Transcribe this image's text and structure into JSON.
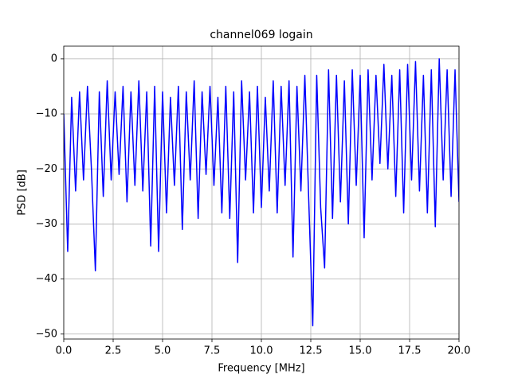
{
  "chart_data": {
    "type": "line",
    "title": "channel069 logain",
    "x_label": "Frequency [MHz]",
    "y_label": "PSD [dB]",
    "x": [
      0,
      0.2,
      0.4,
      0.6,
      0.8,
      1.0,
      1.2,
      1.4,
      1.6,
      1.8,
      2.0,
      2.2,
      2.4,
      2.6,
      2.8,
      3.0,
      3.2,
      3.4,
      3.6,
      3.8,
      4.0,
      4.2,
      4.4,
      4.6,
      4.8,
      5.0,
      5.2,
      5.4,
      5.6,
      5.8,
      6.0,
      6.2,
      6.4,
      6.6,
      6.8,
      7.0,
      7.2,
      7.4,
      7.6,
      7.8,
      8.0,
      8.2,
      8.4,
      8.6,
      8.8,
      9.0,
      9.2,
      9.4,
      9.6,
      9.8,
      10.0,
      10.2,
      10.4,
      10.6,
      10.8,
      11.0,
      11.2,
      11.4,
      11.6,
      11.8,
      12.0,
      12.2,
      12.4,
      12.6,
      12.8,
      13.0,
      13.2,
      13.4,
      13.6,
      13.8,
      14.0,
      14.2,
      14.4,
      14.6,
      14.8,
      15.0,
      15.2,
      15.4,
      15.6,
      15.8,
      16.0,
      16.2,
      16.4,
      16.6,
      16.8,
      17.0,
      17.2,
      17.4,
      17.6,
      17.8,
      18.0,
      18.2,
      18.4,
      18.6,
      18.8,
      19.0,
      19.2,
      19.4,
      19.6,
      19.8,
      20.0
    ],
    "series": [
      {
        "color": "#0000ff",
        "values": [
          -10,
          -35,
          -7,
          -24,
          -6,
          -22,
          -5,
          -20,
          -38.5,
          -6,
          -25,
          -4,
          -22,
          -6,
          -21,
          -5,
          -26,
          -6,
          -23,
          -4,
          -24,
          -6,
          -34,
          -5,
          -35,
          -6,
          -28,
          -7,
          -23,
          -5,
          -31,
          -6,
          -22,
          -4,
          -29,
          -6,
          -21,
          -5,
          -23,
          -7,
          -28,
          -5,
          -29,
          -6,
          -37,
          -4,
          -22,
          -6,
          -28,
          -5,
          -27,
          -7,
          -24,
          -4,
          -28,
          -5,
          -23,
          -4,
          -36,
          -5,
          -24,
          -3,
          -26,
          -48.5,
          -3,
          -27,
          -38,
          -2,
          -29,
          -3,
          -26,
          -4,
          -30,
          -2,
          -23,
          -3,
          -32.5,
          -2,
          -22,
          -3,
          -19,
          -1,
          -20,
          -3,
          -25,
          -2,
          -28,
          -1,
          -22,
          -0.5,
          -24,
          -3,
          -28,
          -2,
          -30.5,
          0,
          -22,
          -2,
          -25,
          -2,
          -26
        ]
      }
    ],
    "xlim": [
      0,
      20
    ],
    "ylim": [
      -50.9,
      2.3
    ],
    "xticks": [
      {
        "value": 0,
        "label": "0.0"
      },
      {
        "value": 2.5,
        "label": "2.5"
      },
      {
        "value": 5,
        "label": "5.0"
      },
      {
        "value": 7.5,
        "label": "7.5"
      },
      {
        "value": 10,
        "label": "10.0"
      },
      {
        "value": 12.5,
        "label": "12.5"
      },
      {
        "value": 15,
        "label": "15.0"
      },
      {
        "value": 17.5,
        "label": "17.5"
      },
      {
        "value": 20,
        "label": "20.0"
      }
    ],
    "yticks": [
      0,
      {
        "value": -10,
        "label": "−10"
      },
      {
        "value": -20,
        "label": "−20"
      },
      {
        "value": -30,
        "label": "−30"
      },
      {
        "value": -40,
        "label": "−40"
      },
      {
        "value": -50,
        "label": "−50"
      }
    ],
    "grid": true
  }
}
